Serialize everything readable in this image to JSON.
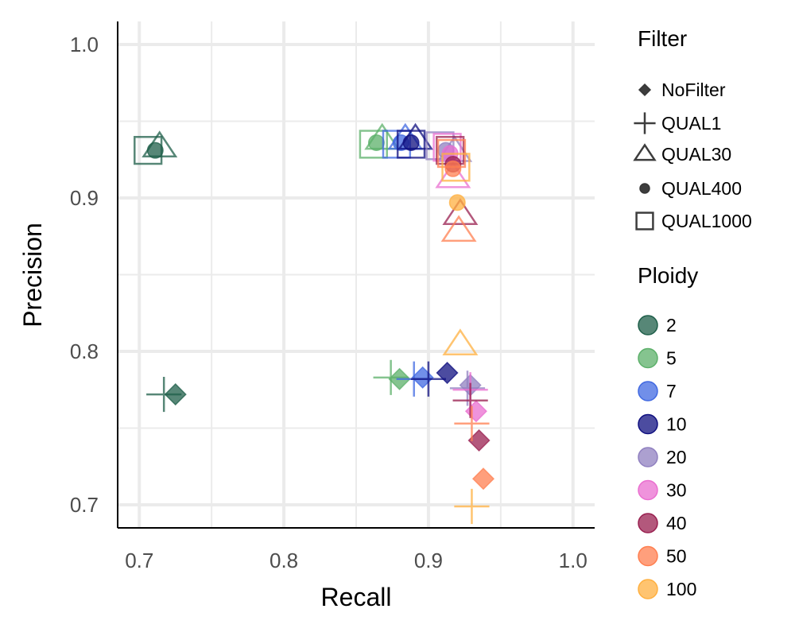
{
  "chart_data": {
    "type": "scatter",
    "xlabel": "Recall",
    "ylabel": "Precision",
    "xlim": [
      0.685,
      1.015
    ],
    "ylim": [
      0.685,
      1.015
    ],
    "x_ticks": [
      0.7,
      0.8,
      0.9,
      1.0
    ],
    "x_tick_labels": [
      "0.7",
      "0.8",
      "0.9",
      "1.0"
    ],
    "y_ticks": [
      0.7,
      0.8,
      0.9,
      1.0
    ],
    "y_tick_labels": [
      "0.7",
      "0.8",
      "0.9",
      "1.0"
    ],
    "grid": true,
    "legend_position": "right",
    "legends": {
      "filter": {
        "title": "Filter",
        "entries": [
          {
            "label": "NoFilter",
            "shape": "diamond"
          },
          {
            "label": "QUAL1",
            "shape": "plus"
          },
          {
            "label": "QUAL30",
            "shape": "triangle"
          },
          {
            "label": "QUAL400",
            "shape": "circle"
          },
          {
            "label": "QUAL1000",
            "shape": "square"
          }
        ]
      },
      "ploidy": {
        "title": "Ploidy",
        "entries": [
          {
            "label": "2",
            "color": "#1f5f4a"
          },
          {
            "label": "5",
            "color": "#5cb06a"
          },
          {
            "label": "7",
            "color": "#4169e1"
          },
          {
            "label": "10",
            "color": "#101080"
          },
          {
            "label": "20",
            "color": "#9080c0"
          },
          {
            "label": "30",
            "color": "#ea6fd0"
          },
          {
            "label": "40",
            "color": "#992050"
          },
          {
            "label": "50",
            "color": "#ff7f50"
          },
          {
            "label": "100",
            "color": "#ffb040"
          }
        ]
      }
    },
    "points": [
      {
        "ploidy": "2",
        "filter": "NoFilter",
        "x": 0.725,
        "y": 0.772
      },
      {
        "ploidy": "2",
        "filter": "QUAL1",
        "x": 0.717,
        "y": 0.772
      },
      {
        "ploidy": "2",
        "filter": "QUAL30",
        "x": 0.714,
        "y": 0.933
      },
      {
        "ploidy": "2",
        "filter": "QUAL400",
        "x": 0.711,
        "y": 0.931
      },
      {
        "ploidy": "2",
        "filter": "QUAL1000",
        "x": 0.706,
        "y": 0.931
      },
      {
        "ploidy": "5",
        "filter": "NoFilter",
        "x": 0.88,
        "y": 0.782
      },
      {
        "ploidy": "5",
        "filter": "QUAL1",
        "x": 0.874,
        "y": 0.783
      },
      {
        "ploidy": "5",
        "filter": "QUAL30",
        "x": 0.868,
        "y": 0.938
      },
      {
        "ploidy": "5",
        "filter": "QUAL400",
        "x": 0.864,
        "y": 0.936
      },
      {
        "ploidy": "5",
        "filter": "QUAL1000",
        "x": 0.862,
        "y": 0.935
      },
      {
        "ploidy": "7",
        "filter": "NoFilter",
        "x": 0.896,
        "y": 0.783
      },
      {
        "ploidy": "7",
        "filter": "QUAL1",
        "x": 0.89,
        "y": 0.782
      },
      {
        "ploidy": "7",
        "filter": "QUAL30",
        "x": 0.884,
        "y": 0.938
      },
      {
        "ploidy": "7",
        "filter": "QUAL400",
        "x": 0.881,
        "y": 0.936
      },
      {
        "ploidy": "7",
        "filter": "QUAL1000",
        "x": 0.878,
        "y": 0.935
      },
      {
        "ploidy": "10",
        "filter": "NoFilter",
        "x": 0.913,
        "y": 0.786
      },
      {
        "ploidy": "10",
        "filter": "QUAL1",
        "x": 0.9,
        "y": 0.782
      },
      {
        "ploidy": "10",
        "filter": "QUAL30",
        "x": 0.891,
        "y": 0.938
      },
      {
        "ploidy": "10",
        "filter": "QUAL400",
        "x": 0.888,
        "y": 0.936
      },
      {
        "ploidy": "10",
        "filter": "QUAL1000",
        "x": 0.888,
        "y": 0.935
      },
      {
        "ploidy": "20",
        "filter": "NoFilter",
        "x": 0.929,
        "y": 0.778
      },
      {
        "ploidy": "20",
        "filter": "QUAL1",
        "x": 0.927,
        "y": 0.776
      },
      {
        "ploidy": "20",
        "filter": "QUAL30",
        "x": 0.918,
        "y": 0.93
      },
      {
        "ploidy": "20",
        "filter": "QUAL400",
        "x": 0.912,
        "y": 0.931
      },
      {
        "ploidy": "20",
        "filter": "QUAL1000",
        "x": 0.908,
        "y": 0.934
      },
      {
        "ploidy": "30",
        "filter": "NoFilter",
        "x": 0.933,
        "y": 0.761
      },
      {
        "ploidy": "30",
        "filter": "QUAL1",
        "x": 0.929,
        "y": 0.775
      },
      {
        "ploidy": "30",
        "filter": "QUAL30",
        "x": 0.917,
        "y": 0.913
      },
      {
        "ploidy": "30",
        "filter": "QUAL400",
        "x": 0.915,
        "y": 0.929
      },
      {
        "ploidy": "30",
        "filter": "QUAL1000",
        "x": 0.913,
        "y": 0.933
      },
      {
        "ploidy": "40",
        "filter": "NoFilter",
        "x": 0.935,
        "y": 0.742
      },
      {
        "ploidy": "40",
        "filter": "QUAL1",
        "x": 0.929,
        "y": 0.768
      },
      {
        "ploidy": "40",
        "filter": "QUAL30",
        "x": 0.922,
        "y": 0.889
      },
      {
        "ploidy": "40",
        "filter": "QUAL400",
        "x": 0.917,
        "y": 0.922
      },
      {
        "ploidy": "40",
        "filter": "QUAL1000",
        "x": 0.915,
        "y": 0.931
      },
      {
        "ploidy": "50",
        "filter": "NoFilter",
        "x": 0.938,
        "y": 0.717
      },
      {
        "ploidy": "50",
        "filter": "QUAL1",
        "x": 0.93,
        "y": 0.753
      },
      {
        "ploidy": "50",
        "filter": "QUAL30",
        "x": 0.921,
        "y": 0.878
      },
      {
        "ploidy": "50",
        "filter": "QUAL400",
        "x": 0.917,
        "y": 0.919
      },
      {
        "ploidy": "50",
        "filter": "QUAL1000",
        "x": 0.916,
        "y": 0.929
      },
      {
        "ploidy": "100",
        "filter": "QUAL1",
        "x": 0.93,
        "y": 0.699
      },
      {
        "ploidy": "100",
        "filter": "QUAL30",
        "x": 0.922,
        "y": 0.804
      },
      {
        "ploidy": "100",
        "filter": "QUAL400",
        "x": 0.92,
        "y": 0.897
      },
      {
        "ploidy": "100",
        "filter": "QUAL1000",
        "x": 0.919,
        "y": 0.92
      }
    ]
  }
}
